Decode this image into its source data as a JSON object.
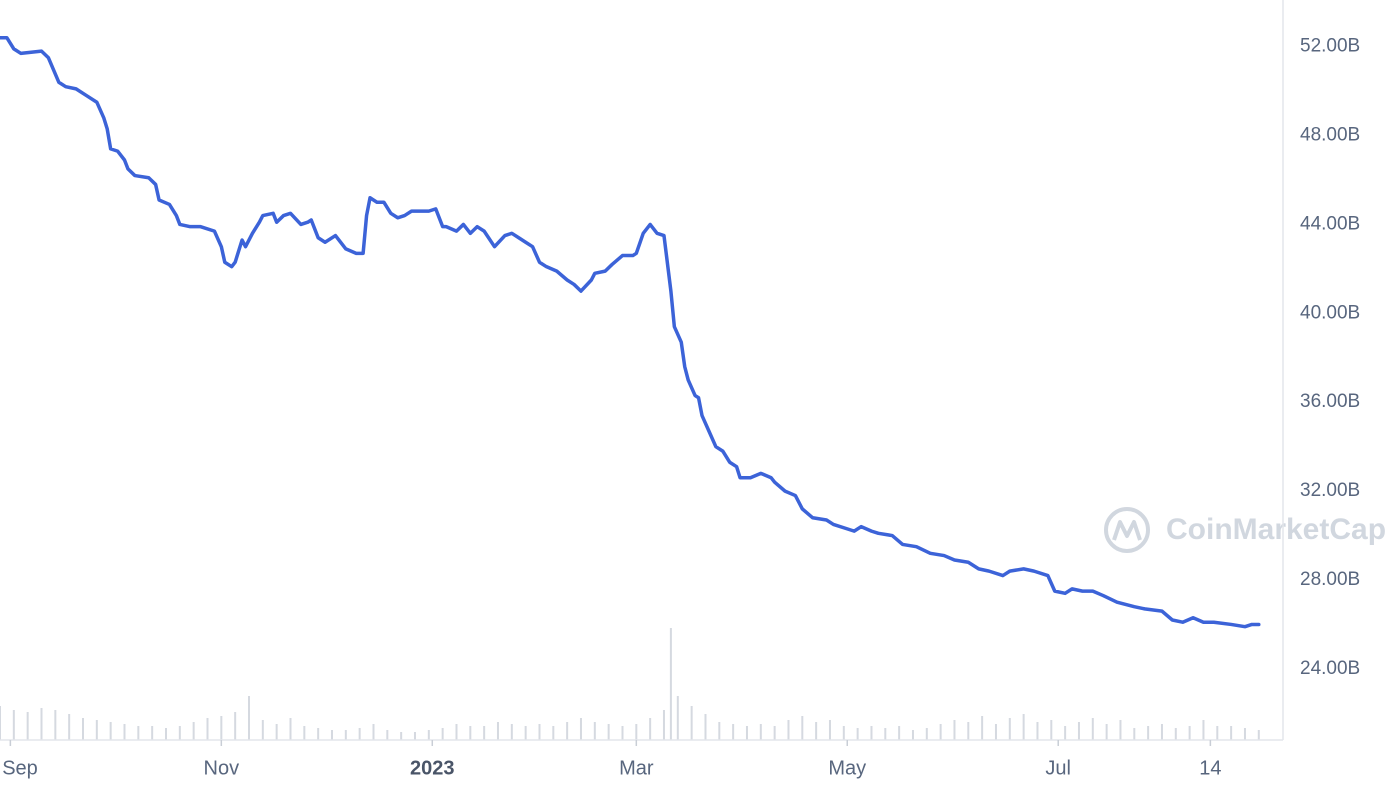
{
  "chart_data": {
    "type": "line",
    "watermark": "CoinMarketCap",
    "xlim": [
      0,
      371
    ],
    "xticks": [
      {
        "value": 3,
        "label": "Sep"
      },
      {
        "value": 64,
        "label": "Nov"
      },
      {
        "value": 125,
        "label": "2023"
      },
      {
        "value": 184,
        "label": "Mar"
      },
      {
        "value": 245,
        "label": "May"
      },
      {
        "value": 306,
        "label": "Jul"
      },
      {
        "value": 350,
        "label": "14"
      }
    ],
    "ylim": [
      20.8,
      54.1
    ],
    "yticks": [
      {
        "value": 24,
        "label": "24.00B"
      },
      {
        "value": 28,
        "label": "28.00B"
      },
      {
        "value": 32,
        "label": "32.00B"
      },
      {
        "value": 36,
        "label": "36.00B"
      },
      {
        "value": 40,
        "label": "40.00B"
      },
      {
        "value": 44,
        "label": "44.00B"
      },
      {
        "value": 48,
        "label": "48.00B"
      },
      {
        "value": 52,
        "label": "52.00B"
      }
    ],
    "y2lim": [
      0,
      740
    ],
    "grid": true,
    "series": [
      {
        "type": "line",
        "color": "#3c63d8",
        "x": [
          0,
          2,
          4,
          6,
          12,
          14,
          17,
          19,
          22,
          25,
          28,
          30,
          31,
          32,
          34,
          36,
          37,
          39,
          43,
          45,
          46,
          49,
          51,
          52,
          55,
          58,
          62,
          64,
          65,
          67,
          68,
          70,
          71,
          73,
          75,
          76,
          79,
          80,
          82,
          84,
          87,
          89,
          90,
          92,
          94,
          97,
          100,
          103,
          105,
          106,
          107,
          109,
          111,
          113,
          115,
          117,
          119,
          124,
          126,
          128,
          129,
          132,
          134,
          136,
          138,
          140,
          143,
          146,
          148,
          150,
          152,
          154,
          156,
          158,
          161,
          164,
          166,
          168,
          171,
          172,
          175,
          177,
          180,
          183,
          184,
          186,
          188,
          190,
          192,
          194,
          195,
          197,
          198,
          199,
          201,
          202,
          203,
          205,
          207,
          209,
          211,
          213,
          214,
          217,
          220,
          223,
          224,
          227,
          230,
          232,
          235,
          239,
          241,
          245,
          247,
          249,
          252,
          254,
          258,
          261,
          265,
          269,
          273,
          276,
          280,
          283,
          286,
          290,
          292,
          296,
          299,
          303,
          305,
          308,
          310,
          313,
          316,
          319,
          323,
          328,
          331,
          336,
          339,
          342,
          345,
          348,
          351,
          356,
          360,
          362,
          364
        ],
        "values": [
          52.4,
          52.4,
          51.9,
          51.7,
          51.8,
          51.5,
          50.4,
          50.2,
          50.1,
          49.8,
          49.5,
          48.8,
          48.3,
          47.4,
          47.3,
          46.9,
          46.5,
          46.2,
          46.1,
          45.8,
          45.1,
          44.9,
          44.4,
          44.0,
          43.9,
          43.9,
          43.7,
          43.0,
          42.3,
          42.1,
          42.3,
          43.3,
          43.0,
          43.6,
          44.1,
          44.4,
          44.5,
          44.1,
          44.4,
          44.5,
          44.0,
          44.1,
          44.2,
          43.4,
          43.2,
          43.5,
          42.9,
          42.7,
          42.7,
          44.4,
          45.2,
          45.0,
          45.0,
          44.5,
          44.3,
          44.4,
          44.6,
          44.6,
          44.7,
          43.9,
          43.9,
          43.7,
          44.0,
          43.6,
          43.9,
          43.7,
          43.0,
          43.5,
          43.6,
          43.4,
          43.2,
          43.0,
          42.3,
          42.1,
          41.9,
          41.5,
          41.3,
          41.0,
          41.5,
          41.8,
          41.9,
          42.2,
          42.6,
          42.6,
          42.7,
          43.6,
          44.0,
          43.6,
          43.5,
          41.0,
          39.4,
          38.7,
          37.6,
          37.0,
          36.3,
          36.2,
          35.4,
          34.7,
          34.0,
          33.8,
          33.3,
          33.1,
          32.6,
          32.6,
          32.8,
          32.6,
          32.4,
          32.0,
          31.8,
          31.2,
          30.8,
          30.7,
          30.5,
          30.3,
          30.2,
          30.4,
          30.2,
          30.1,
          30.0,
          29.6,
          29.5,
          29.2,
          29.1,
          28.9,
          28.8,
          28.5,
          28.4,
          28.2,
          28.4,
          28.5,
          28.4,
          28.2,
          27.5,
          27.4,
          27.6,
          27.5,
          27.5,
          27.3,
          27.0,
          26.8,
          26.7,
          26.6,
          26.2,
          26.1,
          26.3,
          26.1,
          26.1,
          26.0,
          25.9,
          26.0,
          26.0
        ]
      },
      {
        "type": "bar",
        "axis": "y2",
        "color": "#d5d9e0",
        "x": [
          0,
          4,
          8,
          12,
          16,
          20,
          24,
          28,
          32,
          36,
          40,
          44,
          48,
          52,
          56,
          60,
          64,
          68,
          72,
          76,
          80,
          84,
          88,
          92,
          96,
          100,
          104,
          108,
          112,
          116,
          120,
          124,
          128,
          132,
          136,
          140,
          144,
          148,
          152,
          156,
          160,
          164,
          168,
          172,
          176,
          180,
          184,
          188,
          192,
          194,
          196,
          200,
          204,
          208,
          212,
          216,
          220,
          224,
          228,
          232,
          236,
          240,
          244,
          248,
          252,
          256,
          260,
          264,
          268,
          272,
          276,
          280,
          284,
          288,
          292,
          296,
          300,
          304,
          308,
          312,
          316,
          320,
          324,
          328,
          332,
          336,
          340,
          344,
          348,
          352,
          356,
          360,
          364
        ],
        "values": [
          34,
          30,
          28,
          32,
          30,
          26,
          22,
          20,
          18,
          16,
          14,
          14,
          12,
          14,
          18,
          22,
          24,
          28,
          44,
          20,
          16,
          22,
          14,
          12,
          10,
          10,
          12,
          16,
          10,
          8,
          8,
          10,
          12,
          16,
          14,
          14,
          18,
          16,
          14,
          16,
          14,
          18,
          22,
          18,
          16,
          14,
          16,
          22,
          30,
          112,
          44,
          34,
          26,
          18,
          16,
          14,
          16,
          14,
          20,
          24,
          18,
          20,
          14,
          12,
          14,
          12,
          14,
          10,
          12,
          16,
          20,
          18,
          24,
          16,
          22,
          26,
          18,
          20,
          14,
          18,
          22,
          16,
          20,
          12,
          14,
          16,
          12,
          14,
          20,
          14,
          14,
          12,
          10
        ]
      }
    ]
  }
}
